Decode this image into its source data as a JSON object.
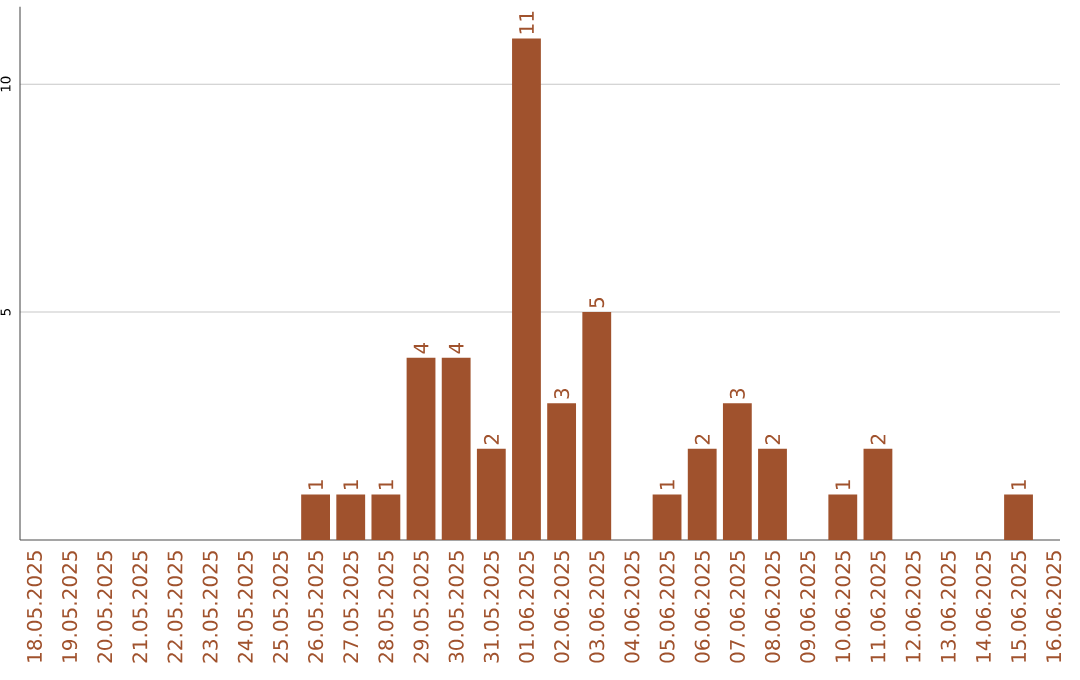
{
  "chart_data": {
    "type": "bar",
    "categories": [
      "18.05.2025",
      "19.05.2025",
      "20.05.2025",
      "21.05.2025",
      "22.05.2025",
      "23.05.2025",
      "24.05.2025",
      "25.05.2025",
      "26.05.2025",
      "27.05.2025",
      "28.05.2025",
      "29.05.2025",
      "30.05.2025",
      "31.05.2025",
      "01.06.2025",
      "02.06.2025",
      "03.06.2025",
      "04.06.2025",
      "05.06.2025",
      "06.06.2025",
      "07.06.2025",
      "08.06.2025",
      "09.06.2025",
      "10.06.2025",
      "11.06.2025",
      "12.06.2025",
      "13.06.2025",
      "14.06.2025",
      "15.06.2025",
      "16.06.2025"
    ],
    "values": [
      0,
      0,
      0,
      0,
      0,
      0,
      0,
      0,
      1,
      1,
      1,
      4,
      4,
      2,
      11,
      3,
      5,
      0,
      1,
      2,
      3,
      2,
      0,
      1,
      2,
      0,
      0,
      0,
      1,
      0
    ],
    "value_labels": [
      null,
      null,
      null,
      null,
      null,
      null,
      null,
      null,
      "1",
      "1",
      "1",
      "4",
      "4",
      "2",
      "11",
      "3",
      "5",
      null,
      "1",
      "2",
      "3",
      "2",
      null,
      "1",
      "2",
      null,
      null,
      null,
      "1",
      null
    ],
    "color": "#a0522d",
    "ylim": [
      0,
      11.7
    ],
    "yticks": [
      5,
      10
    ],
    "grid": "y"
  }
}
